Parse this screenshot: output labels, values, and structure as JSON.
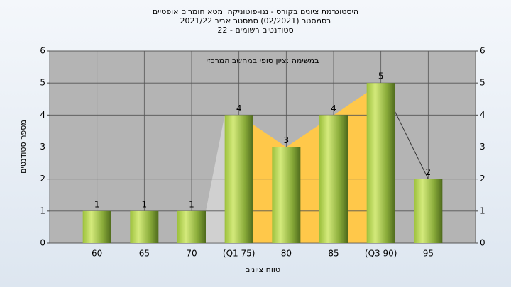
{
  "chart_data": {
    "type": "bar",
    "title": [
      "היסטוגרמת ציונים בקורס - ננו-פוטוניקה ומטא חומרים אופטיים",
      "בסמסטר  (02/2021)  סמסטר אביב 2021/22",
      "סטודנטים רשומים - 22"
    ],
    "annotation": "במשימה :ציון סופי במחשב המרכזי",
    "x_label": "טווח ציונים",
    "y_label": "מספר סטודנטים",
    "categories": [
      "60",
      "65",
      "70",
      "(Q1 75)",
      "80",
      "85",
      "(Q3 90)",
      "95"
    ],
    "values": [
      1,
      1,
      1,
      4,
      3,
      4,
      5,
      2
    ],
    "ylim": [
      0,
      6
    ],
    "yticks": [
      0,
      1,
      2,
      3,
      4,
      5,
      6
    ],
    "grid": true
  }
}
